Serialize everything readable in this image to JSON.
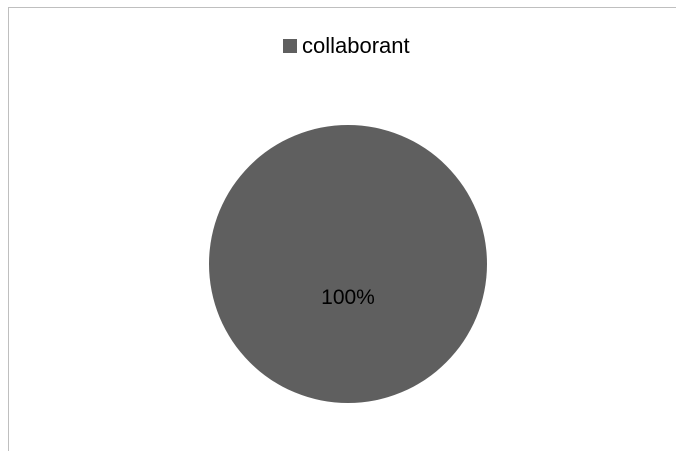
{
  "chart_data": {
    "type": "pie",
    "categories": [
      "collaborant"
    ],
    "values": [
      100
    ],
    "data_labels": [
      "100%"
    ],
    "colors": [
      "#5f5f5f"
    ],
    "legend": {
      "entries": [
        "collaborant"
      ],
      "placement": "top"
    },
    "title": ""
  }
}
